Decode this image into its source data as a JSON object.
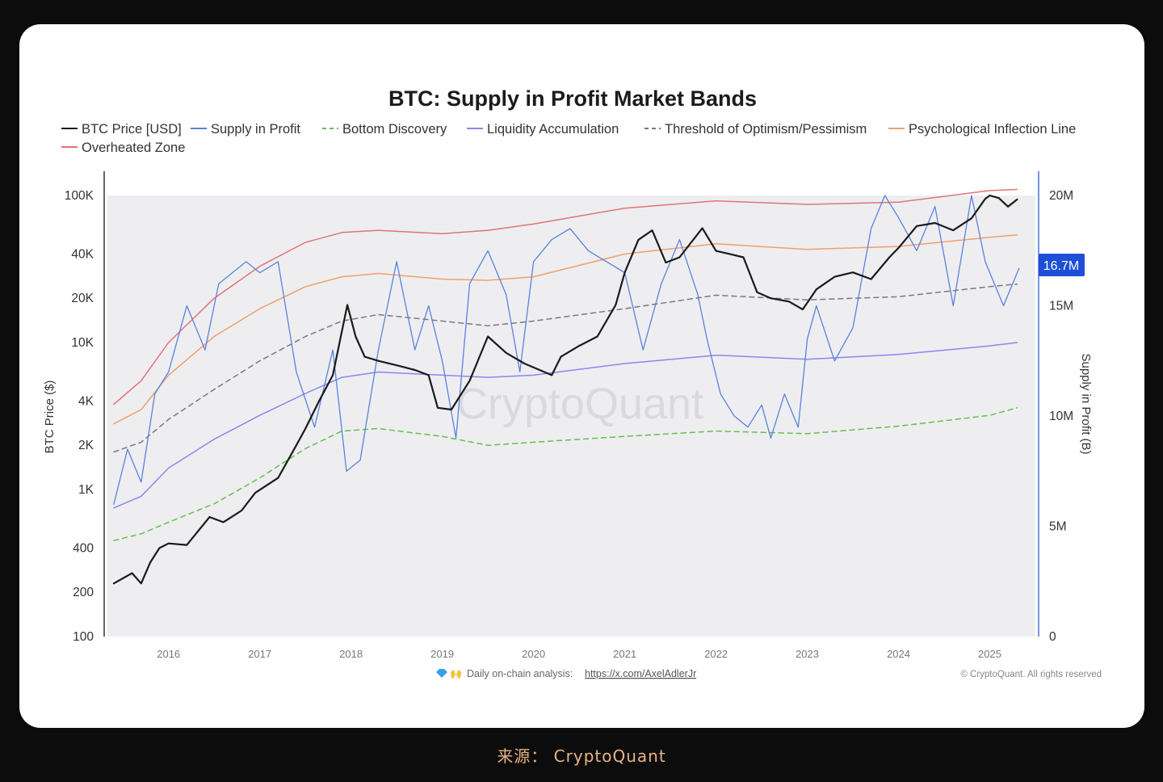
{
  "caption": "来源： CryptoQuant",
  "chart_data": {
    "type": "line",
    "title": "BTC: Supply in Profit Market Bands",
    "ylabel": "BTC Price ($)",
    "y2label": "Supply in Profit (B)",
    "yscale": "log",
    "ylim": [
      100,
      100000
    ],
    "y2lim": [
      0,
      20000000
    ],
    "y_ticks": [
      {
        "label": "100K",
        "value": 100000
      },
      {
        "label": "40K",
        "value": 40000
      },
      {
        "label": "20K",
        "value": 20000
      },
      {
        "label": "10K",
        "value": 10000
      },
      {
        "label": "4K",
        "value": 4000
      },
      {
        "label": "2K",
        "value": 2000
      },
      {
        "label": "1K",
        "value": 1000
      },
      {
        "label": "400",
        "value": 400
      },
      {
        "label": "200",
        "value": 200
      },
      {
        "label": "100",
        "value": 100
      }
    ],
    "y2_ticks": [
      {
        "label": "20M",
        "value": 20000000
      },
      {
        "label": "15M",
        "value": 15000000
      },
      {
        "label": "10M",
        "value": 10000000
      },
      {
        "label": "5M",
        "value": 5000000
      },
      {
        "label": "0",
        "value": 0
      }
    ],
    "x_ticks": [
      "2016",
      "2017",
      "2018",
      "2019",
      "2020",
      "2021",
      "2022",
      "2023",
      "2024",
      "2025"
    ],
    "xlim": [
      "2015-05",
      "2025-06"
    ],
    "last_value_label": "16.7M",
    "legend_position": "top-left",
    "watermark": "CryptoQuant",
    "footer_text": "Daily on-chain analysis:",
    "footer_link": "https://x.com/AxelAdlerJr",
    "copyright": "© CryptoQuant. All rights reserved",
    "series": [
      {
        "name": "BTC Price [USD]",
        "axis": "left",
        "color": "#1a1a1a",
        "dash": "solid",
        "width": 2.2,
        "x": [
          2015.4,
          2015.6,
          2015.7,
          2015.8,
          2015.9,
          2016.0,
          2016.2,
          2016.45,
          2016.6,
          2016.8,
          2016.95,
          2017.2,
          2017.4,
          2017.5,
          2017.65,
          2017.8,
          2017.9,
          2017.96,
          2018.05,
          2018.15,
          2018.3,
          2018.5,
          2018.7,
          2018.85,
          2018.95,
          2019.1,
          2019.3,
          2019.5,
          2019.7,
          2019.9,
          2020.2,
          2020.3,
          2020.5,
          2020.7,
          2020.9,
          2021.0,
          2021.15,
          2021.3,
          2021.45,
          2021.6,
          2021.85,
          2022.0,
          2022.15,
          2022.3,
          2022.45,
          2022.6,
          2022.8,
          2022.95,
          2023.1,
          2023.3,
          2023.5,
          2023.7,
          2023.9,
          2024.0,
          2024.2,
          2024.4,
          2024.6,
          2024.8,
          2024.95,
          2025.0,
          2025.1,
          2025.2,
          2025.3
        ],
        "values": [
          230,
          270,
          230,
          320,
          400,
          430,
          420,
          650,
          600,
          720,
          950,
          1200,
          2000,
          2600,
          4000,
          6000,
          12000,
          18000,
          11000,
          8000,
          7500,
          7000,
          6500,
          6000,
          3600,
          3500,
          5500,
          11000,
          8500,
          7200,
          6000,
          8000,
          9500,
          11000,
          18000,
          30000,
          50000,
          58000,
          35000,
          38000,
          60000,
          42000,
          40000,
          38000,
          22000,
          20000,
          19000,
          16800,
          23000,
          28000,
          30000,
          27000,
          38000,
          44000,
          62000,
          65000,
          58000,
          70000,
          95000,
          100000,
          96000,
          84000,
          94000
        ]
      },
      {
        "name": "Supply in Profit",
        "axis": "right",
        "color": "#5a82db",
        "dash": "solid",
        "width": 1.3,
        "x": [
          2015.4,
          2015.55,
          2015.7,
          2015.85,
          2016.0,
          2016.2,
          2016.4,
          2016.55,
          2016.7,
          2016.85,
          2017.0,
          2017.2,
          2017.4,
          2017.6,
          2017.8,
          2017.95,
          2018.1,
          2018.3,
          2018.5,
          2018.7,
          2018.85,
          2019.0,
          2019.15,
          2019.3,
          2019.5,
          2019.7,
          2019.85,
          2020.0,
          2020.2,
          2020.4,
          2020.6,
          2020.8,
          2021.0,
          2021.2,
          2021.4,
          2021.6,
          2021.8,
          2021.9,
          2022.05,
          2022.2,
          2022.35,
          2022.5,
          2022.6,
          2022.75,
          2022.9,
          2023.0,
          2023.1,
          2023.3,
          2023.5,
          2023.7,
          2023.85,
          2024.0,
          2024.2,
          2024.4,
          2024.6,
          2024.8,
          2024.95,
          2025.05,
          2025.15,
          2025.25,
          2025.32
        ],
        "values": [
          6000000,
          8500000,
          7000000,
          11000000,
          12000000,
          15000000,
          13000000,
          16000000,
          16500000,
          17000000,
          16500000,
          17000000,
          12000000,
          9500000,
          13000000,
          7500000,
          8000000,
          13000000,
          17000000,
          13000000,
          15000000,
          12500000,
          9000000,
          16000000,
          17500000,
          15500000,
          12000000,
          17000000,
          18000000,
          18500000,
          17500000,
          17000000,
          16500000,
          13000000,
          16000000,
          18000000,
          15500000,
          13500000,
          11000000,
          10000000,
          9500000,
          10500000,
          9000000,
          11000000,
          9500000,
          13500000,
          15000000,
          12500000,
          14000000,
          18500000,
          20000000,
          19000000,
          17500000,
          19500000,
          15000000,
          20000000,
          17000000,
          16000000,
          15000000,
          16000000,
          16700000
        ]
      },
      {
        "name": "Bottom Discovery",
        "axis": "left",
        "color": "#62bf4e",
        "dash": "dashed",
        "width": 1.5,
        "x": [
          2015.4,
          2015.7,
          2016.0,
          2016.5,
          2017.0,
          2017.5,
          2017.9,
          2018.3,
          2019.0,
          2019.5,
          2020.0,
          2021.0,
          2022.0,
          2023.0,
          2024.0,
          2025.0,
          2025.3
        ],
        "values": [
          450,
          500,
          600,
          800,
          1200,
          1900,
          2500,
          2600,
          2300,
          2000,
          2100,
          2300,
          2500,
          2400,
          2700,
          3200,
          3600
        ]
      },
      {
        "name": "Liquidity Accumulation",
        "axis": "left",
        "color": "#8a87ee",
        "dash": "solid",
        "width": 1.5,
        "x": [
          2015.4,
          2015.7,
          2016.0,
          2016.5,
          2017.0,
          2017.5,
          2017.9,
          2018.3,
          2019.0,
          2019.5,
          2020.0,
          2021.0,
          2022.0,
          2023.0,
          2024.0,
          2025.0,
          2025.3
        ],
        "values": [
          750,
          900,
          1400,
          2200,
          3200,
          4500,
          5800,
          6300,
          6000,
          5800,
          6000,
          7200,
          8200,
          7700,
          8300,
          9500,
          10000
        ]
      },
      {
        "name": "Threshold of Optimism/Pessimism",
        "axis": "left",
        "color": "#7a7a7a",
        "dash": "dashed",
        "width": 1.5,
        "x": [
          2015.4,
          2015.7,
          2016.0,
          2016.5,
          2017.0,
          2017.5,
          2017.9,
          2018.3,
          2019.0,
          2019.5,
          2020.0,
          2021.0,
          2022.0,
          2023.0,
          2024.0,
          2025.0,
          2025.3
        ],
        "values": [
          1800,
          2100,
          3000,
          4800,
          7500,
          11000,
          14000,
          15500,
          14000,
          13000,
          14000,
          17000,
          21000,
          19500,
          20500,
          24000,
          25000
        ]
      },
      {
        "name": "Psychological Inflection Line",
        "axis": "left",
        "color": "#f0a06a",
        "dash": "solid",
        "width": 1.5,
        "x": [
          2015.4,
          2015.7,
          2016.0,
          2016.5,
          2017.0,
          2017.5,
          2017.9,
          2018.3,
          2019.0,
          2019.5,
          2020.0,
          2021.0,
          2022.0,
          2023.0,
          2024.0,
          2025.0,
          2025.3
        ],
        "values": [
          2800,
          3500,
          6000,
          11000,
          17000,
          24000,
          28000,
          29500,
          27000,
          26500,
          28000,
          40000,
          47000,
          43000,
          45000,
          52000,
          54000
        ]
      },
      {
        "name": "Overheated Zone",
        "axis": "left",
        "color": "#e27474",
        "dash": "solid",
        "width": 1.5,
        "x": [
          2015.4,
          2015.7,
          2016.0,
          2016.5,
          2017.0,
          2017.5,
          2017.9,
          2018.3,
          2019.0,
          2019.5,
          2020.0,
          2021.0,
          2022.0,
          2023.0,
          2024.0,
          2025.0,
          2025.3
        ],
        "values": [
          3800,
          5500,
          10000,
          20000,
          33000,
          48000,
          56000,
          58000,
          55000,
          58000,
          64000,
          82000,
          92000,
          87000,
          90000,
          108000,
          110000
        ]
      }
    ]
  }
}
